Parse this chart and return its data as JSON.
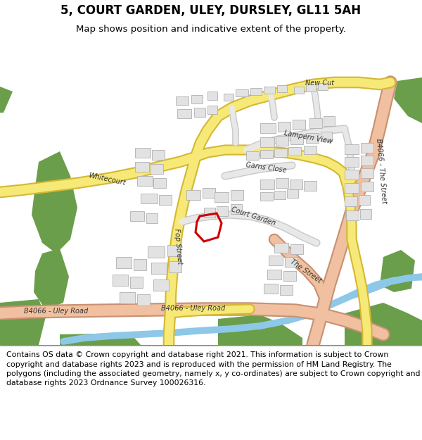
{
  "title": "5, COURT GARDEN, ULEY, DURSLEY, GL11 5AH",
  "subtitle": "Map shows position and indicative extent of the property.",
  "footer": "Contains OS data © Crown copyright and database right 2021. This information is subject to Crown copyright and database rights 2023 and is reproduced with the permission of HM Land Registry. The polygons (including the associated geometry, namely x, y co-ordinates) are subject to Crown copyright and database rights 2023 Ordnance Survey 100026316.",
  "bg_color": "#ffffff",
  "map_bg": "#ffffff",
  "road_yellow_fill": "#f7e978",
  "road_yellow_border": "#d4b832",
  "road_pink_fill": "#f0c0a0",
  "road_pink_border": "#c89070",
  "road_gray_fill": "#e8e8e8",
  "road_gray_border": "#c8c8c8",
  "building_color": "#e2e2e2",
  "building_edge": "#b0b0b0",
  "green_color": "#6a9e4a",
  "blue_color": "#8ec8e8",
  "highlight_color": "#cc0000",
  "title_fontsize": 12,
  "subtitle_fontsize": 9.5,
  "footer_fontsize": 7.8,
  "label_fontsize": 7.0
}
